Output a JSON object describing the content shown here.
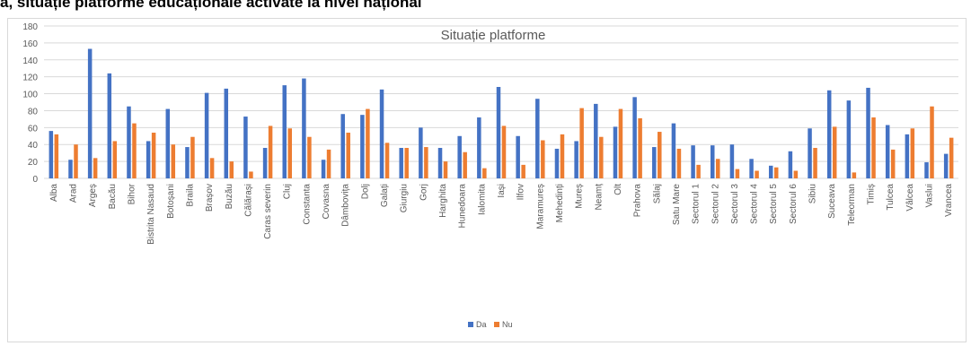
{
  "page_heading": "ă, situație platforme educaționale activate la nivel național",
  "chart_data": {
    "type": "bar",
    "title": "Situație platforme",
    "xlabel": "",
    "ylabel": "",
    "ylim": [
      0,
      180
    ],
    "yticks": [
      0,
      20,
      40,
      60,
      80,
      100,
      120,
      140,
      160,
      180
    ],
    "grid": true,
    "legend_position": "bottom",
    "categories": [
      "Alba",
      "Arad",
      "Argeș",
      "Bacău",
      "Bihor",
      "Bistrita Nasaud",
      "Botoșani",
      "Braila",
      "Brașov",
      "Buzău",
      "Călărași",
      "Caras severin",
      "Cluj",
      "Constanta",
      "Covasna",
      "Dâmbovița",
      "Dolj",
      "Galați",
      "Giurgiu",
      "Gorj",
      "Harghita",
      "Hunedoara",
      "Ialomita",
      "Iași",
      "Ilfov",
      "Maramureș",
      "Mehedinți",
      "Mureș",
      "Neamț",
      "Olt",
      "Prahova",
      "Sălaj",
      "Satu Mare",
      "Sectorul 1",
      "Sectorul 2",
      "Sectorul 3",
      "Sectorul 4",
      "Sectorul 5",
      "Sectorul 6",
      "Sibiu",
      "Suceava",
      "Teleorman",
      "Timiș",
      "Tulcea",
      "Vâlcea",
      "Vaslui",
      "Vrancea"
    ],
    "series": [
      {
        "name": "Da",
        "color": "#4472c4",
        "values": [
          56,
          22,
          153,
          124,
          85,
          44,
          82,
          37,
          101,
          106,
          73,
          36,
          110,
          118,
          22,
          76,
          75,
          105,
          36,
          60,
          36,
          50,
          72,
          108,
          50,
          94,
          35,
          44,
          88,
          61,
          96,
          37,
          65,
          39,
          39,
          40,
          23,
          15,
          32,
          59,
          104,
          92,
          107,
          63,
          52,
          19,
          29
        ]
      },
      {
        "name": "Nu",
        "color": "#ed7d31",
        "values": [
          52,
          40,
          24,
          44,
          65,
          54,
          40,
          49,
          24,
          20,
          8,
          62,
          59,
          49,
          34,
          54,
          82,
          42,
          36,
          37,
          20,
          31,
          12,
          62,
          16,
          45,
          52,
          83,
          49,
          82,
          71,
          55,
          35,
          16,
          23,
          11,
          9,
          13,
          9,
          36,
          61,
          7,
          72,
          34,
          59,
          85,
          48
        ]
      }
    ]
  }
}
